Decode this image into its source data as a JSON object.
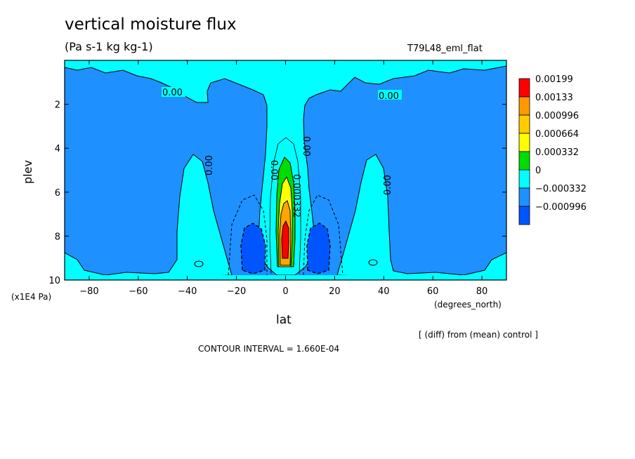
{
  "chart_data": {
    "type": "contour",
    "title": "vertical moisture flux",
    "units": "(Pa s-1 kg kg-1)",
    "run_label": "T79L48_eml_flat",
    "xlabel": "lat",
    "xunit": "(degrees_north)",
    "ylabel": "plev",
    "yunit": "(x1E4 Pa)",
    "xlim": [
      -90,
      90
    ],
    "ylim": [
      10,
      0
    ],
    "x_ticks": [
      -80,
      -60,
      -40,
      -20,
      0,
      20,
      40,
      60,
      80
    ],
    "x_tick_labels": [
      "−80",
      "−60",
      "−40",
      "−20",
      "0",
      "20",
      "40",
      "60",
      "80"
    ],
    "y_ticks": [
      2,
      4,
      6,
      8,
      10
    ],
    "y_tick_labels": [
      "2",
      "4",
      "6",
      "8",
      "10"
    ],
    "contour_labels": [
      "0.00",
      "0.00",
      "0.00",
      "0.00",
      "0.00",
      "0.00",
      "0.000332"
    ],
    "contour_interval": "CONTOUR INTERVAL = 1.660E-04",
    "comparison_note": "[ (diff) from (mean) control ]",
    "legend": {
      "levels": [
        "0.00199",
        "0.00133",
        "0.000996",
        "0.000664",
        "0.000332",
        "0",
        "−0.000332",
        "−0.000996"
      ],
      "colors": [
        "#ff0000",
        "#ff9900",
        "#ffcc00",
        "#ffff00",
        "#00dd00",
        "#00ffff",
        "#1e90ff",
        "#0055ff"
      ]
    },
    "colors": {
      "background": "#1e90ff",
      "zero_band": "#00ffff",
      "negative": "#0055ff",
      "low_positive": "#00dd00",
      "mid_positive": "#ffff00",
      "high_positive": "#ffa500",
      "peak": "#ff0000"
    }
  }
}
